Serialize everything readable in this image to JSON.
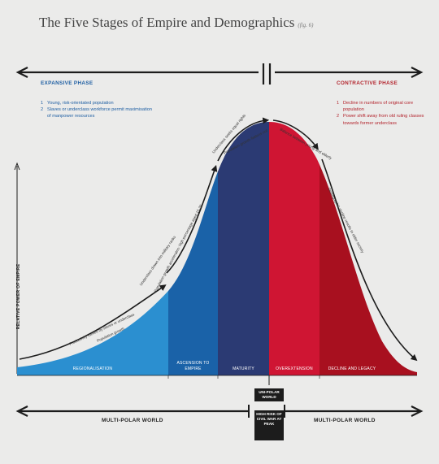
{
  "title": "The Five Stages of Empire and Demographics",
  "fig_ref": "(fig. 6)",
  "expansive": {
    "heading": "EXPANSIVE PHASE",
    "items": [
      {
        "num": "1",
        "text": "Young, risk-orientated population"
      },
      {
        "num": "2",
        "text": "Slaves or underclass workforce permit maximisation of manpower resources"
      }
    ]
  },
  "contractive": {
    "heading": "CONTRACTIVE PHASE",
    "items": [
      {
        "num": "1",
        "text": "Decline in numbers of original core population"
      },
      {
        "num": "2",
        "text": "Power shift away from old ruling classes towards former underclass"
      }
    ]
  },
  "y_axis_label": "RELATIVE POWER OF EMPIRE",
  "stages": [
    {
      "label": "REGIONALISATION",
      "color": "#2b8fd0"
    },
    {
      "label": "ASCENSION TO EMPIRE",
      "color": "#1a62a8"
    },
    {
      "label": "MATURITY",
      "color": "#2b3a73"
    },
    {
      "label": "OVEREXTENSION",
      "color": "#cf1533"
    },
    {
      "label": "DECLINE AND LEGACY",
      "color": "#a8101f"
    }
  ],
  "curve_notes": [
    "Productivity fuelled by slaves or underclass",
    "Population growth",
    "Underclass drawn into military ranks",
    "Population growth accelerates: high percentage aged 15-30",
    "Underclass seeks equal rights",
    "Population growth flattens out",
    "Balance between young and elderly",
    "Demographic decline results in older society"
  ],
  "bottom": {
    "left_label": "MULTI-POLAR WORLD",
    "right_label": "MULTI-POLAR WORLD",
    "center_top": "UNI-POLAR WORLD",
    "center_bottom": "HIGH RISK OF CIVIL WAR AT PEAK"
  }
}
